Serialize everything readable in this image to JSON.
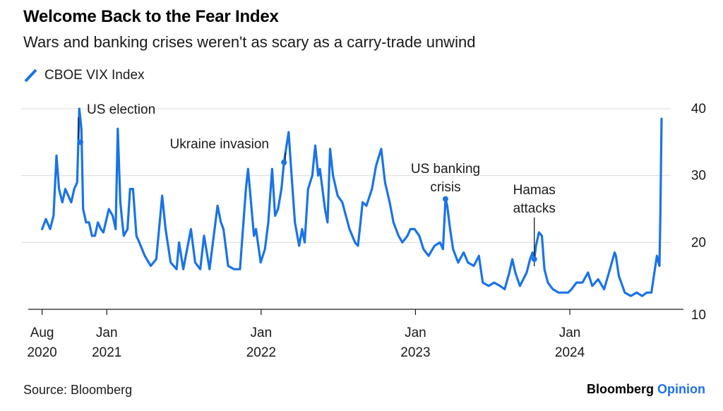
{
  "title": "Welcome Back to the Fear Index",
  "subtitle": "Wars and banking crises weren't as scary as a carry-trade unwind",
  "legend_label": "CBOE VIX Index",
  "source": "Source: Bloomberg",
  "brand": {
    "name": "Bloomberg",
    "suffix": "Opinion"
  },
  "colors": {
    "series": "#1a73e8",
    "brand_accent": "#1f6feb",
    "grid": "#dcdcdc"
  },
  "chart_data": {
    "type": "line",
    "series_name": "CBOE VIX Index",
    "y_axis": {
      "position": "right",
      "ylim": [
        8,
        42
      ],
      "ticks": [
        10,
        20,
        30,
        40
      ]
    },
    "x_axis": {
      "range": [
        "2020-07-31",
        "2024-08-10"
      ],
      "ticks": [
        {
          "date": "2020-08-01",
          "line1": "Aug",
          "line2": "2020"
        },
        {
          "date": "2021-01-01",
          "line1": "Jan",
          "line2": "2021"
        },
        {
          "date": "2022-01-01",
          "line1": "Jan",
          "line2": "2022"
        },
        {
          "date": "2023-01-01",
          "line1": "Jan",
          "line2": "2023"
        },
        {
          "date": "2024-01-01",
          "line1": "Jan",
          "line2": "2024"
        }
      ]
    },
    "grid": true,
    "points": [
      [
        "2020-08-01",
        22
      ],
      [
        "2020-08-10",
        23.5
      ],
      [
        "2020-08-20",
        22
      ],
      [
        "2020-08-28",
        24
      ],
      [
        "2020-09-04",
        33
      ],
      [
        "2020-09-10",
        28
      ],
      [
        "2020-09-18",
        26
      ],
      [
        "2020-09-25",
        28
      ],
      [
        "2020-10-02",
        27
      ],
      [
        "2020-10-09",
        26
      ],
      [
        "2020-10-16",
        28
      ],
      [
        "2020-10-23",
        29
      ],
      [
        "2020-10-28",
        40
      ],
      [
        "2020-11-02",
        37
      ],
      [
        "2020-11-06",
        25
      ],
      [
        "2020-11-13",
        23
      ],
      [
        "2020-11-20",
        23
      ],
      [
        "2020-11-27",
        21
      ],
      [
        "2020-12-04",
        21
      ],
      [
        "2020-12-11",
        23
      ],
      [
        "2020-12-18",
        22
      ],
      [
        "2020-12-24",
        21.5
      ],
      [
        "2021-01-06",
        25
      ],
      [
        "2021-01-15",
        24
      ],
      [
        "2021-01-22",
        22
      ],
      [
        "2021-01-27",
        37
      ],
      [
        "2021-02-02",
        26
      ],
      [
        "2021-02-10",
        21
      ],
      [
        "2021-02-19",
        22
      ],
      [
        "2021-02-25",
        28
      ],
      [
        "2021-03-04",
        28
      ],
      [
        "2021-03-12",
        21
      ],
      [
        "2021-03-19",
        20
      ],
      [
        "2021-04-01",
        18
      ],
      [
        "2021-04-15",
        16.5
      ],
      [
        "2021-04-28",
        17.5
      ],
      [
        "2021-05-12",
        27
      ],
      [
        "2021-05-20",
        22
      ],
      [
        "2021-06-01",
        17
      ],
      [
        "2021-06-15",
        16
      ],
      [
        "2021-06-21",
        20
      ],
      [
        "2021-07-01",
        16
      ],
      [
        "2021-07-19",
        22
      ],
      [
        "2021-07-29",
        17
      ],
      [
        "2021-08-10",
        16
      ],
      [
        "2021-08-19",
        21
      ],
      [
        "2021-09-01",
        16
      ],
      [
        "2021-09-20",
        25.5
      ],
      [
        "2021-09-28",
        23
      ],
      [
        "2021-10-04",
        22
      ],
      [
        "2021-10-15",
        16.5
      ],
      [
        "2021-10-29",
        16
      ],
      [
        "2021-11-12",
        16
      ],
      [
        "2021-11-26",
        28
      ],
      [
        "2021-12-01",
        31
      ],
      [
        "2021-12-15",
        21
      ],
      [
        "2021-12-20",
        22
      ],
      [
        "2021-12-31",
        17
      ],
      [
        "2022-01-10",
        19
      ],
      [
        "2022-01-18",
        23
      ],
      [
        "2022-01-27",
        31
      ],
      [
        "2022-02-03",
        24
      ],
      [
        "2022-02-10",
        25
      ],
      [
        "2022-02-18",
        28
      ],
      [
        "2022-02-24",
        32
      ],
      [
        "2022-03-07",
        36.5
      ],
      [
        "2022-03-14",
        30
      ],
      [
        "2022-03-22",
        23
      ],
      [
        "2022-04-01",
        19.5
      ],
      [
        "2022-04-08",
        22
      ],
      [
        "2022-04-14",
        20
      ],
      [
        "2022-04-22",
        28
      ],
      [
        "2022-05-02",
        30
      ],
      [
        "2022-05-09",
        34.5
      ],
      [
        "2022-05-16",
        30
      ],
      [
        "2022-05-20",
        31
      ],
      [
        "2022-06-01",
        25
      ],
      [
        "2022-06-07",
        23
      ],
      [
        "2022-06-13",
        34
      ],
      [
        "2022-06-20",
        30
      ],
      [
        "2022-07-01",
        27
      ],
      [
        "2022-07-12",
        26
      ],
      [
        "2022-07-29",
        22
      ],
      [
        "2022-08-11",
        20
      ],
      [
        "2022-08-18",
        19.5
      ],
      [
        "2022-08-29",
        26
      ],
      [
        "2022-09-07",
        25.5
      ],
      [
        "2022-09-20",
        28
      ],
      [
        "2022-09-30",
        31.5
      ],
      [
        "2022-10-12",
        34
      ],
      [
        "2022-10-21",
        29
      ],
      [
        "2022-11-01",
        26
      ],
      [
        "2022-11-10",
        23
      ],
      [
        "2022-11-22",
        21
      ],
      [
        "2022-12-01",
        20
      ],
      [
        "2022-12-13",
        21
      ],
      [
        "2022-12-20",
        22
      ],
      [
        "2022-12-30",
        22
      ],
      [
        "2023-01-10",
        21
      ],
      [
        "2023-01-20",
        19
      ],
      [
        "2023-02-01",
        18
      ],
      [
        "2023-02-15",
        19.5
      ],
      [
        "2023-02-28",
        20
      ],
      [
        "2023-03-07",
        19
      ],
      [
        "2023-03-13",
        26.5
      ],
      [
        "2023-03-17",
        25.5
      ],
      [
        "2023-03-24",
        22
      ],
      [
        "2023-03-31",
        19
      ],
      [
        "2023-04-12",
        17
      ],
      [
        "2023-04-25",
        18.5
      ],
      [
        "2023-05-05",
        17
      ],
      [
        "2023-05-19",
        16.5
      ],
      [
        "2023-05-31",
        18
      ],
      [
        "2023-06-09",
        14
      ],
      [
        "2023-06-23",
        13.5
      ],
      [
        "2023-07-06",
        14
      ],
      [
        "2023-07-20",
        13.5
      ],
      [
        "2023-07-31",
        13
      ],
      [
        "2023-08-11",
        15.5
      ],
      [
        "2023-08-18",
        17.5
      ],
      [
        "2023-08-25",
        15.5
      ],
      [
        "2023-09-05",
        13.5
      ],
      [
        "2023-09-21",
        15.5
      ],
      [
        "2023-09-29",
        17.5
      ],
      [
        "2023-10-05",
        18.5
      ],
      [
        "2023-10-09",
        17.5
      ],
      [
        "2023-10-13",
        19.5
      ],
      [
        "2023-10-20",
        21.5
      ],
      [
        "2023-10-27",
        21
      ],
      [
        "2023-11-02",
        16
      ],
      [
        "2023-11-10",
        14
      ],
      [
        "2023-11-22",
        13
      ],
      [
        "2023-12-05",
        12.5
      ],
      [
        "2023-12-15",
        12.5
      ],
      [
        "2023-12-28",
        12.5
      ],
      [
        "2024-01-05",
        13
      ],
      [
        "2024-01-17",
        14
      ],
      [
        "2024-01-31",
        14
      ],
      [
        "2024-02-13",
        15.5
      ],
      [
        "2024-02-23",
        13.5
      ],
      [
        "2024-03-08",
        14.5
      ],
      [
        "2024-03-22",
        13
      ],
      [
        "2024-04-05",
        16
      ],
      [
        "2024-04-16",
        18.5
      ],
      [
        "2024-04-19",
        18
      ],
      [
        "2024-04-26",
        15
      ],
      [
        "2024-05-10",
        12.5
      ],
      [
        "2024-05-24",
        12
      ],
      [
        "2024-06-07",
        12.5
      ],
      [
        "2024-06-20",
        12
      ],
      [
        "2024-07-01",
        12.5
      ],
      [
        "2024-07-12",
        12.5
      ],
      [
        "2024-07-19",
        15.5
      ],
      [
        "2024-07-25",
        18
      ],
      [
        "2024-07-31",
        16.5
      ],
      [
        "2024-08-02",
        23.5
      ],
      [
        "2024-08-05",
        38.5
      ]
    ],
    "annotations": [
      {
        "lines": [
          "US election"
        ],
        "date": "2020-11-03",
        "value": 35,
        "text_anchor": "start"
      },
      {
        "lines": [
          "Ukraine invasion"
        ],
        "date": "2022-02-24",
        "value": 32,
        "text_anchor": "end"
      },
      {
        "lines": [
          "US banking",
          "crisis"
        ],
        "date": "2023-03-13",
        "value": 26.5,
        "text_anchor": "middle"
      },
      {
        "lines": [
          "Hamas",
          "attacks"
        ],
        "date": "2023-10-09",
        "value": 17.5,
        "text_anchor": "middle"
      }
    ]
  }
}
